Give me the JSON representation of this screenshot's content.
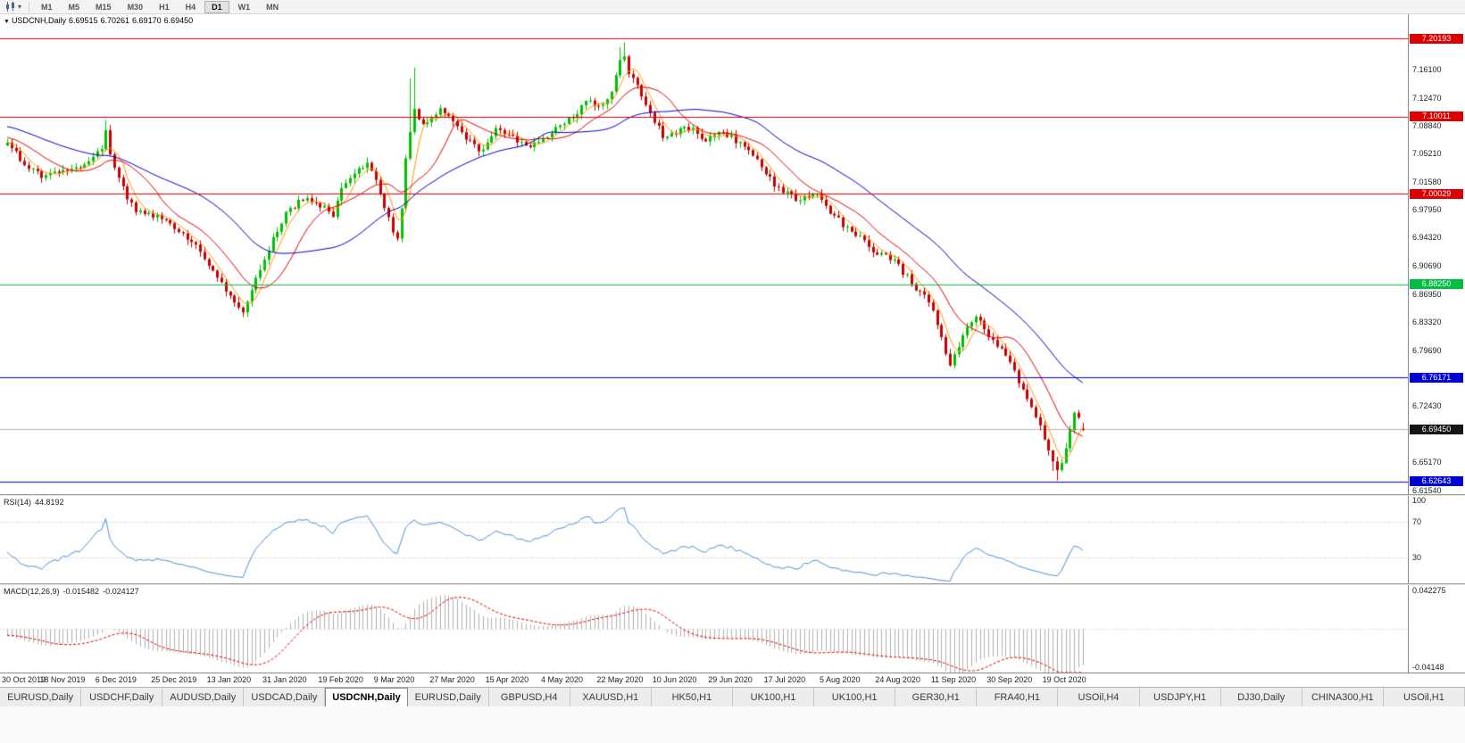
{
  "icons": {
    "chart_marker": "▼",
    "toolbar_caret": "▾"
  },
  "toolbar": {
    "timeframes": [
      "M1",
      "M5",
      "M15",
      "M30",
      "H1",
      "H4",
      "D1",
      "W1",
      "MN"
    ],
    "active_timeframe": "D1"
  },
  "window": {
    "marker": "▼",
    "ohlc_title": {
      "symbol": "USDCNH,Daily",
      "open": "6.69515",
      "high": "6.70261",
      "low": "6.69170",
      "close": "6.69450"
    }
  },
  "price_axis": {
    "decimals": 5,
    "ticks": [
      7.161,
      7.1247,
      7.0884,
      7.0521,
      7.0158,
      6.9795,
      6.9432,
      6.9069,
      6.8695,
      6.8332,
      6.7969,
      6.7243,
      6.6517,
      6.6154
    ]
  },
  "levels": [
    {
      "price": 7.20193,
      "color": "#dd0000",
      "kind": "resistance"
    },
    {
      "price": 7.10011,
      "color": "#dd0000",
      "kind": "resistance"
    },
    {
      "price": 7.00029,
      "color": "#dd0000",
      "kind": "resistance"
    },
    {
      "price": 6.8825,
      "color": "#00bf40",
      "kind": "support"
    },
    {
      "price": 6.76171,
      "color": "#0000d8",
      "kind": "support"
    },
    {
      "price": 6.62643,
      "color": "#0000d8",
      "kind": "support"
    }
  ],
  "current_price": 6.6945,
  "indicators": {
    "rsi": {
      "label": "RSI(14)",
      "value": "44.8192",
      "axis_ticks": [
        100,
        70,
        30
      ],
      "level_lines": [
        70,
        30
      ]
    },
    "macd": {
      "label": "MACD(12,26,9)",
      "value1": "-0.015482",
      "value2": "-0.024127",
      "axis_top": "0.042275",
      "axis_bottom": "-0.04148"
    }
  },
  "date_axis": [
    {
      "bar": 0,
      "label": "30 Oct 2019"
    },
    {
      "bar": 13,
      "label": "18 Nov 2019"
    },
    {
      "bar": 26,
      "label": "6 Dec 2019"
    },
    {
      "bar": 39,
      "label": "25 Dec 2019"
    },
    {
      "bar": 52,
      "label": "13 Jan 2020"
    },
    {
      "bar": 65,
      "label": "31 Jan 2020"
    },
    {
      "bar": 78,
      "label": "19 Feb 2020"
    },
    {
      "bar": 91,
      "label": "9 Mar 2020"
    },
    {
      "bar": 104,
      "label": "27 Mar 2020"
    },
    {
      "bar": 117,
      "label": "15 Apr 2020"
    },
    {
      "bar": 130,
      "label": "4 May 2020"
    },
    {
      "bar": 143,
      "label": "22 May 2020"
    },
    {
      "bar": 156,
      "label": "10 Jun 2020"
    },
    {
      "bar": 169,
      "label": "29 Jun 2020"
    },
    {
      "bar": 182,
      "label": "17 Jul 2020"
    },
    {
      "bar": 195,
      "label": "5 Aug 2020"
    },
    {
      "bar": 208,
      "label": "24 Aug 2020"
    },
    {
      "bar": 221,
      "label": "11 Sep 2020"
    },
    {
      "bar": 234,
      "label": "30 Sep 2020"
    },
    {
      "bar": 247,
      "label": "19 Oct 2020"
    }
  ],
  "tabs": [
    {
      "label": "EURUSD,Daily",
      "active": false
    },
    {
      "label": "USDCHF,Daily",
      "active": false
    },
    {
      "label": "AUDUSD,Daily",
      "active": false
    },
    {
      "label": "USDCAD,Daily",
      "active": false
    },
    {
      "label": "USDCNH,Daily",
      "active": true
    },
    {
      "label": "EURUSD,Daily",
      "active": false
    },
    {
      "label": "GBPUSD,H4",
      "active": false
    },
    {
      "label": "XAUUSD,H1",
      "active": false
    },
    {
      "label": "HK50,H1",
      "active": false
    },
    {
      "label": "UK100,H1",
      "active": false
    },
    {
      "label": "UK100,H1",
      "active": false
    },
    {
      "label": "GER30,H1",
      "active": false
    },
    {
      "label": "FRA40,H1",
      "active": false
    },
    {
      "label": "USOil,H4",
      "active": false
    },
    {
      "label": "USDJPY,H1",
      "active": false
    },
    {
      "label": "DJ30,Daily",
      "active": false
    },
    {
      "label": "CHINA300,H1",
      "active": false
    },
    {
      "label": "USOil,H1",
      "active": false
    }
  ],
  "colors": {
    "up": "#00c000",
    "down": "#c80000",
    "ma_fast": "#ff9900",
    "ma_mid": "#e60000",
    "ma_slow": "#0000cc",
    "rsi": "#4a90d9",
    "rsi_level": "#b8b8b8",
    "macd_hist": "#b0b0b0",
    "macd_signal": "#e00000",
    "price_line": "#b4b4b4",
    "price_badge": "#141414"
  },
  "chart_data": {
    "type": "candlestick",
    "symbol": "USDCNH",
    "timeframe": "Daily",
    "title": "USDCNH,Daily",
    "price_range": {
      "top": 7.2332,
      "bottom": 6.6102
    },
    "bar_count": 252,
    "burn_in": 60,
    "last_close": 6.6945,
    "moving_averages": [
      {
        "period": 5,
        "color": "#ff9900"
      },
      {
        "period": 13,
        "color": "#e60000"
      },
      {
        "period": 34,
        "color": "#0000cc"
      }
    ],
    "anchors": [
      [
        -60,
        7.075
      ],
      [
        -45,
        7.095
      ],
      [
        -30,
        7.105
      ],
      [
        -15,
        7.085
      ],
      [
        -5,
        7.072
      ],
      [
        0,
        7.064
      ],
      [
        4,
        7.04
      ],
      [
        8,
        7.023
      ],
      [
        11,
        7.028
      ],
      [
        13,
        7.031
      ],
      [
        16,
        7.036
      ],
      [
        19,
        7.041
      ],
      [
        22,
        7.058
      ],
      [
        23,
        7.086
      ],
      [
        24,
        7.052
      ],
      [
        25,
        7.032
      ],
      [
        26,
        7.018
      ],
      [
        28,
        6.995
      ],
      [
        30,
        6.979
      ],
      [
        33,
        6.972
      ],
      [
        36,
        6.968
      ],
      [
        39,
        6.958
      ],
      [
        42,
        6.942
      ],
      [
        45,
        6.925
      ],
      [
        48,
        6.898
      ],
      [
        51,
        6.875
      ],
      [
        54,
        6.855
      ],
      [
        55,
        6.849
      ],
      [
        57,
        6.872
      ],
      [
        59,
        6.905
      ],
      [
        62,
        6.94
      ],
      [
        65,
        6.974
      ],
      [
        68,
        6.99
      ],
      [
        70,
        6.994
      ],
      [
        73,
        6.984
      ],
      [
        76,
        6.974
      ],
      [
        78,
        7.004
      ],
      [
        80,
        7.022
      ],
      [
        82,
        7.033
      ],
      [
        84,
        7.041
      ],
      [
        86,
        7.022
      ],
      [
        88,
        6.985
      ],
      [
        90,
        6.95
      ],
      [
        91,
        6.94
      ],
      [
        92,
        6.985
      ],
      [
        93,
        7.045
      ],
      [
        95,
        7.112
      ],
      [
        97,
        7.088
      ],
      [
        99,
        7.1
      ],
      [
        101,
        7.112
      ],
      [
        103,
        7.098
      ],
      [
        104,
        7.091
      ],
      [
        106,
        7.078
      ],
      [
        108,
        7.068
      ],
      [
        110,
        7.054
      ],
      [
        112,
        7.068
      ],
      [
        114,
        7.083
      ],
      [
        117,
        7.076
      ],
      [
        119,
        7.068
      ],
      [
        121,
        7.062
      ],
      [
        124,
        7.067
      ],
      [
        127,
        7.08
      ],
      [
        130,
        7.094
      ],
      [
        133,
        7.102
      ],
      [
        135,
        7.124
      ],
      [
        137,
        7.112
      ],
      [
        139,
        7.118
      ],
      [
        141,
        7.13
      ],
      [
        143,
        7.175
      ],
      [
        144,
        7.182
      ],
      [
        145,
        7.158
      ],
      [
        147,
        7.138
      ],
      [
        149,
        7.118
      ],
      [
        151,
        7.094
      ],
      [
        153,
        7.075
      ],
      [
        156,
        7.076
      ],
      [
        158,
        7.088
      ],
      [
        160,
        7.082
      ],
      [
        163,
        7.072
      ],
      [
        165,
        7.08
      ],
      [
        167,
        7.078
      ],
      [
        169,
        7.074
      ],
      [
        171,
        7.064
      ],
      [
        173,
        7.055
      ],
      [
        175,
        7.047
      ],
      [
        177,
        7.028
      ],
      [
        179,
        7.012
      ],
      [
        182,
        7.0
      ],
      [
        184,
        6.993
      ],
      [
        186,
        6.998
      ],
      [
        188,
        7.003
      ],
      [
        190,
        6.993
      ],
      [
        192,
        6.978
      ],
      [
        195,
        6.96
      ],
      [
        197,
        6.953
      ],
      [
        199,
        6.945
      ],
      [
        201,
        6.93
      ],
      [
        203,
        6.92
      ],
      [
        205,
        6.923
      ],
      [
        208,
        6.906
      ],
      [
        210,
        6.892
      ],
      [
        212,
        6.878
      ],
      [
        214,
        6.87
      ],
      [
        216,
        6.852
      ],
      [
        218,
        6.812
      ],
      [
        220,
        6.78
      ],
      [
        222,
        6.8
      ],
      [
        224,
        6.826
      ],
      [
        226,
        6.838
      ],
      [
        228,
        6.826
      ],
      [
        230,
        6.81
      ],
      [
        232,
        6.8
      ],
      [
        234,
        6.783
      ],
      [
        236,
        6.758
      ],
      [
        238,
        6.732
      ],
      [
        240,
        6.713
      ],
      [
        241,
        6.7
      ],
      [
        243,
        6.665
      ],
      [
        245,
        6.638
      ],
      [
        246,
        6.65
      ],
      [
        247,
        6.668
      ],
      [
        248,
        6.695
      ],
      [
        249,
        6.716
      ],
      [
        250,
        6.71
      ],
      [
        251,
        6.6945
      ]
    ],
    "spikes": [
      {
        "i": 23,
        "high": 7.096
      },
      {
        "i": 55,
        "low": 6.843
      },
      {
        "i": 94,
        "high": 7.15
      },
      {
        "i": 95,
        "high": 7.164
      },
      {
        "i": 143,
        "high": 7.19
      },
      {
        "i": 144,
        "high": 7.197
      },
      {
        "i": 244,
        "low": 6.64
      },
      {
        "i": 245,
        "low": 6.628
      }
    ]
  }
}
